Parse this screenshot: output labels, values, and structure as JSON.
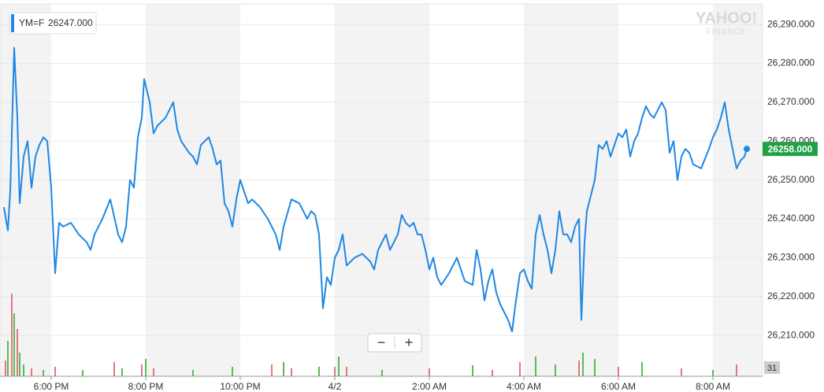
{
  "chart_data": {
    "type": "line",
    "xlim": [
      -65,
      903
    ],
    "ylim": [
      26199.5,
      26295.3
    ],
    "xticks": [
      {
        "value": 0,
        "label": "6:00 PM"
      },
      {
        "value": 120,
        "label": "8:00 PM"
      },
      {
        "value": 240,
        "label": "10:00 PM"
      },
      {
        "value": 360,
        "label": "4/2"
      },
      {
        "value": 480,
        "label": "2:00 AM"
      },
      {
        "value": 600,
        "label": "4:00 AM"
      },
      {
        "value": 720,
        "label": "6:00 AM"
      },
      {
        "value": 840,
        "label": "8:00 AM"
      }
    ],
    "yticks": [
      {
        "value": 26210,
        "label": "26,210.000"
      },
      {
        "value": 26220,
        "label": "26,220.000"
      },
      {
        "value": 26230,
        "label": "26,230.000"
      },
      {
        "value": 26240,
        "label": "26,240.000"
      },
      {
        "value": 26250,
        "label": "26,250.000"
      },
      {
        "value": 26260,
        "label": "26,260.000"
      },
      {
        "value": 26270,
        "label": "26,270.000"
      },
      {
        "value": 26280,
        "label": "26,280.000"
      },
      {
        "value": 26290,
        "label": "26,290.000"
      }
    ],
    "grid": true,
    "series": [
      {
        "name": "YM=F",
        "color": "#1e88e5",
        "legend_value": 26247,
        "legend_value_label": "26247.000",
        "last_price": 26258,
        "last_price_label": "26258.000",
        "last_price_color": "#21a047",
        "x": [
          -60,
          -55,
          -52,
          -47,
          -43,
          -40,
          -35,
          -30,
          -25,
          -20,
          -15,
          -10,
          -5,
          0,
          5,
          10,
          15,
          25,
          35,
          45,
          50,
          55,
          65,
          75,
          85,
          90,
          95,
          100,
          105,
          110,
          115,
          118,
          125,
          130,
          135,
          145,
          155,
          160,
          165,
          175,
          180,
          185,
          190,
          195,
          200,
          205,
          210,
          215,
          220,
          225,
          230,
          235,
          240,
          245,
          250,
          255,
          265,
          275,
          280,
          285,
          290,
          295,
          305,
          315,
          320,
          325,
          330,
          335,
          340,
          345,
          350,
          355,
          360,
          365,
          370,
          375,
          385,
          395,
          405,
          410,
          415,
          425,
          430,
          435,
          440,
          445,
          450,
          455,
          460,
          465,
          470,
          475,
          480,
          485,
          490,
          495,
          505,
          515,
          525,
          535,
          540,
          545,
          550,
          555,
          560,
          565,
          570,
          575,
          580,
          585,
          590,
          595,
          600,
          605,
          610,
          615,
          620,
          625,
          630,
          635,
          640,
          645,
          650,
          655,
          660,
          665,
          670,
          673,
          677,
          680,
          685,
          690,
          695,
          700,
          705,
          710,
          715,
          720,
          725,
          730,
          735,
          740,
          745,
          750,
          755,
          760,
          765,
          775,
          780,
          785,
          790,
          795,
          800,
          805,
          810,
          815,
          825,
          835,
          840,
          845,
          850,
          855,
          860,
          865,
          870,
          875,
          880,
          883
        ],
        "values": [
          26243,
          26237,
          26247,
          26284,
          26266,
          26244,
          26256,
          26260,
          26248,
          26256,
          26259,
          26261,
          26260,
          26248,
          26226,
          26239,
          26238,
          26239,
          26236,
          26234,
          26232,
          26236,
          26240,
          26245,
          26236,
          26234,
          26238,
          26250,
          26248,
          26261,
          26266,
          26276,
          26270,
          26262,
          26264,
          26266,
          26270,
          26263,
          26260,
          26257,
          26256,
          26254,
          26259,
          26260,
          26261,
          26258,
          26254,
          26255,
          26244,
          26242,
          26238,
          26245,
          26250,
          26247,
          26244,
          26245,
          26243,
          26240,
          26238,
          26236,
          26232,
          26238,
          26245,
          26244,
          26242,
          26240,
          26242,
          26241,
          26236,
          26217,
          26225,
          26223,
          26230,
          26232,
          26236,
          26228,
          26230,
          26231,
          26229,
          26227,
          26232,
          26236,
          26232,
          26234,
          26236,
          26241,
          26239,
          26238,
          26239,
          26236,
          26236,
          26232,
          26227,
          26230,
          26225,
          26223,
          26226,
          26230,
          26224,
          26223,
          26232,
          26227,
          26219,
          26224,
          26227,
          26221,
          26218,
          26216,
          26214,
          26211,
          26219,
          26226,
          26227,
          26224,
          26222,
          26236,
          26241,
          26236,
          26232,
          26226,
          26232,
          26242,
          26236,
          26236,
          26234,
          26238,
          26240,
          26214,
          26234,
          26242,
          26246,
          26250,
          26259,
          26258,
          26260,
          26256,
          26259,
          26262,
          26261,
          26263,
          26256,
          26260,
          26262,
          26266,
          26269,
          26267,
          26266,
          26270,
          26268,
          26257,
          26260,
          26250,
          26256,
          26258,
          26257,
          26254,
          26253,
          26258,
          26261,
          26263,
          26266,
          26270,
          26263,
          26258,
          26253,
          26255,
          26256,
          26258
        ]
      }
    ],
    "volume": {
      "ylim": [
        0,
        120
      ],
      "x": [
        -58,
        -55,
        -50,
        -47,
        -43,
        -40,
        -35,
        -25,
        -10,
        5,
        40,
        80,
        90,
        115,
        120,
        130,
        180,
        230,
        280,
        295,
        305,
        340,
        360,
        365,
        375,
        420,
        480,
        535,
        560,
        595,
        615,
        640,
        670,
        675,
        690,
        720,
        750,
        800,
        840,
        870
      ],
      "values": [
        20,
        45,
        105,
        80,
        60,
        30,
        15,
        10,
        8,
        12,
        8,
        18,
        10,
        15,
        22,
        10,
        8,
        12,
        15,
        18,
        10,
        12,
        12,
        25,
        12,
        8,
        10,
        14,
        8,
        18,
        25,
        15,
        20,
        30,
        22,
        12,
        18,
        10,
        8,
        15
      ],
      "colors": [
        "#e07a7a",
        "#5cb85c",
        "#e07a7a",
        "#5cb85c",
        "#e07a7a",
        "#5cb85c",
        "#5cb85c",
        "#e07a7a",
        "#5cb85c",
        "#e07a7a",
        "#5cb85c",
        "#e07a7a",
        "#5cb85c",
        "#e07a7a",
        "#5cb85c",
        "#e07a7a",
        "#5cb85c",
        "#5cb85c",
        "#e07a7a",
        "#5cb85c",
        "#e07a7a",
        "#5cb85c",
        "#e07a7a",
        "#5cb85c",
        "#e07a7a",
        "#5cb85c",
        "#e07a7a",
        "#5cb85c",
        "#e07a7a",
        "#e07a7a",
        "#5cb85c",
        "#5cb85c",
        "#e07a7a",
        "#5cb85c",
        "#5cb85c",
        "#e07a7a",
        "#5cb85c",
        "#e07a7a",
        "#5cb85c",
        "#e07a7a"
      ]
    }
  },
  "ui": {
    "watermark": [
      "YAHOO!",
      "FINANCE"
    ],
    "zoom_controls": [
      "−",
      "+"
    ],
    "calendar_label": "31"
  }
}
